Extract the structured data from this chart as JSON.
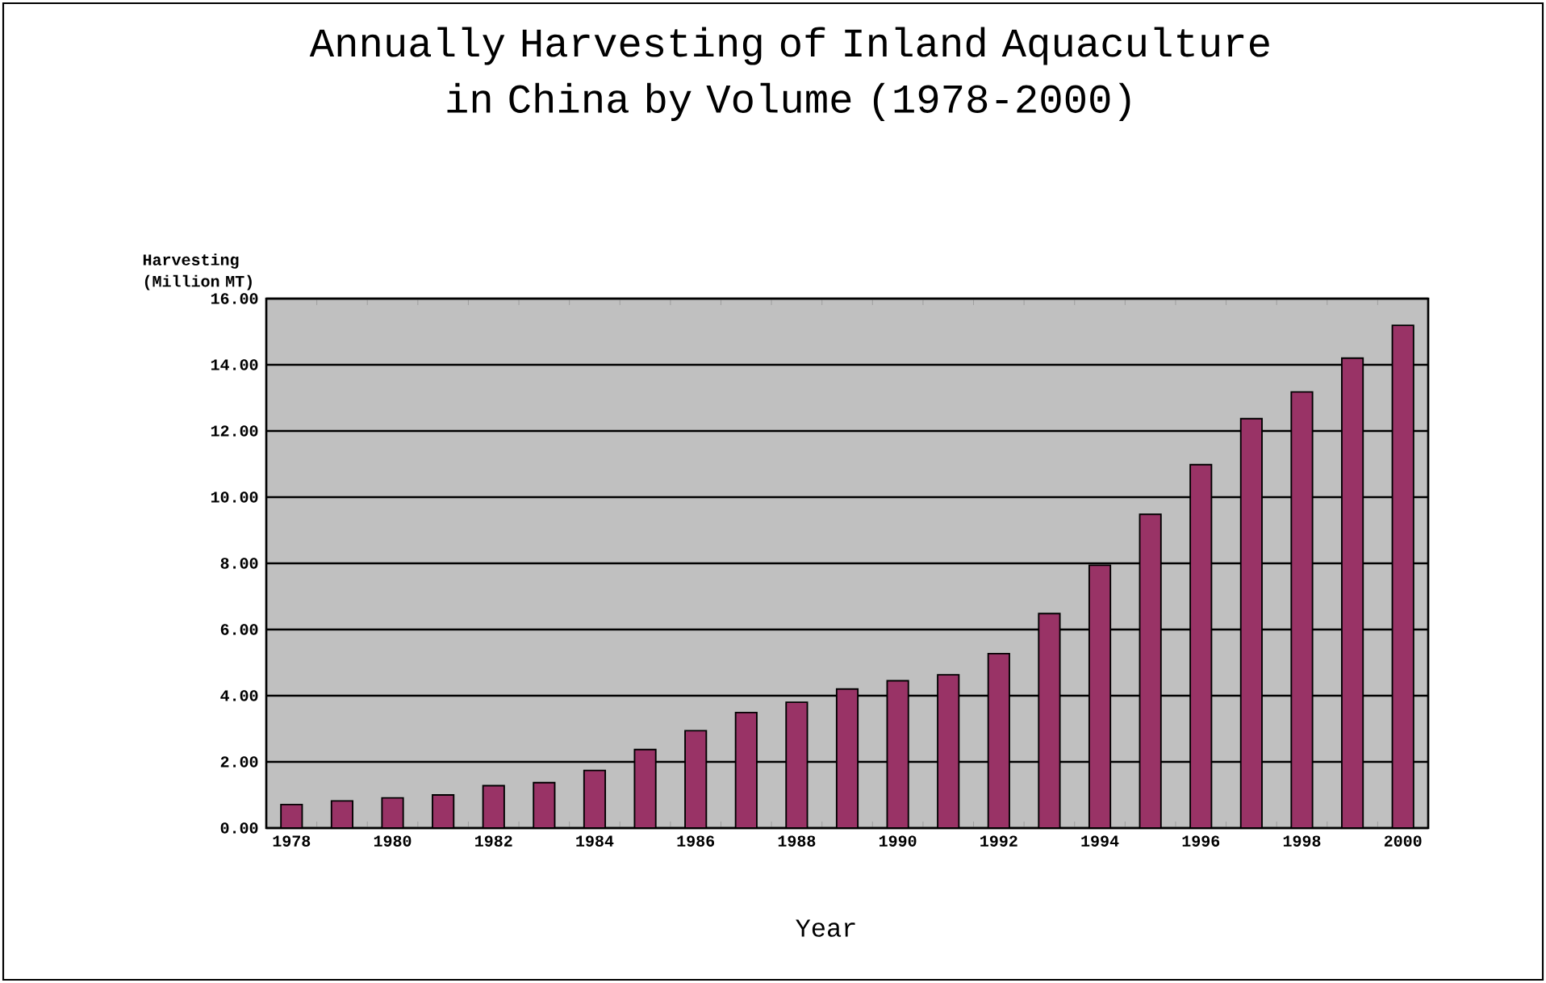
{
  "chart_data": {
    "type": "bar",
    "title": "Annually Harvesting of Inland Aquaculture in China by Volume (1978-2000)",
    "xlabel": "Year",
    "ylabel": "Harvesting (Million MT)",
    "categories": [
      "1978",
      null,
      "1980",
      null,
      "1982",
      null,
      "1984",
      null,
      "1986",
      null,
      "1988",
      null,
      "1990",
      null,
      "1992",
      null,
      "1994",
      null,
      "1996",
      null,
      "1998",
      null,
      "2000"
    ],
    "values": [
      0.71,
      0.82,
      0.91,
      1.0,
      1.28,
      1.37,
      1.74,
      2.37,
      2.94,
      3.49,
      3.8,
      4.2,
      4.45,
      4.63,
      5.27,
      6.48,
      7.94,
      9.48,
      10.98,
      12.37,
      13.18,
      14.2,
      15.19
    ],
    "color": "#993366",
    "ylim": [
      0,
      16
    ],
    "yticks": [
      {
        "value": 0,
        "label": "0.00"
      },
      {
        "value": 2,
        "label": "2.00"
      },
      {
        "value": 4,
        "label": "4.00"
      },
      {
        "value": 6,
        "label": "6.00"
      },
      {
        "value": 8,
        "label": "8.00"
      },
      {
        "value": 10,
        "label": "10.00"
      },
      {
        "value": 12,
        "label": "12.00"
      },
      {
        "value": 14,
        "label": "14.00"
      },
      {
        "value": 16,
        "label": "16.00"
      }
    ],
    "grid": "y"
  }
}
